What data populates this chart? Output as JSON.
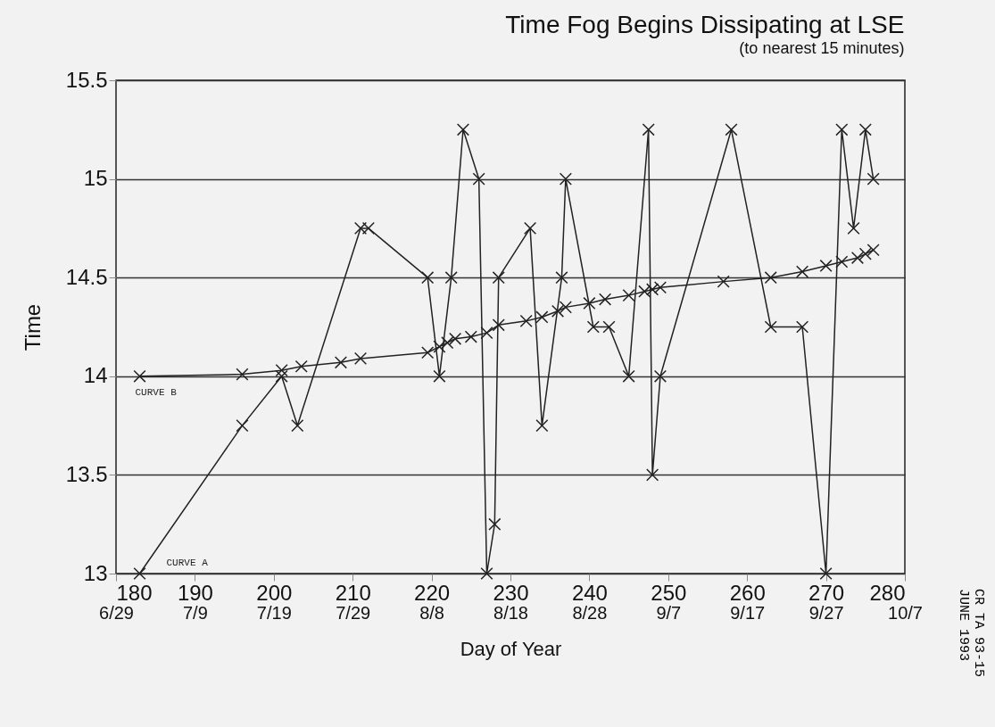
{
  "chart_data": {
    "type": "line",
    "title": "Time Fog Begins Dissipating at LSE",
    "subtitle": "(to nearest 15 minutes)",
    "xlabel": "Day of Year",
    "ylabel": "Time",
    "xlim": [
      180,
      280
    ],
    "ylim": [
      13,
      15.5
    ],
    "xticks": [
      180,
      190,
      200,
      210,
      220,
      230,
      240,
      250,
      260,
      270,
      280
    ],
    "x2lim": [
      "--06-29",
      "--10-07"
    ],
    "x2ticks": [
      {
        "value": "--06-29",
        "label": "6/29"
      },
      {
        "value": "--07-09",
        "label": "7/9"
      },
      {
        "value": "--07-19",
        "label": "7/19"
      },
      {
        "value": "--07-29",
        "label": "7/29"
      },
      {
        "value": "--08-08",
        "label": "8/8"
      },
      {
        "value": "--08-18",
        "label": "8/18"
      },
      {
        "value": "--08-28",
        "label": "8/28"
      },
      {
        "value": "--09-07",
        "label": "9/7"
      },
      {
        "value": "--09-17",
        "label": "9/17"
      },
      {
        "value": "--09-27",
        "label": "9/27"
      },
      {
        "value": "--10-07",
        "label": "10/7"
      }
    ],
    "yticks": [
      13,
      13.5,
      14,
      14.5,
      15,
      15.5
    ],
    "grid": "y",
    "marker": "cross",
    "series": [
      {
        "name": "CURVE A",
        "color": "#222222",
        "x": [
          183,
          196,
          201,
          203,
          211,
          212,
          219.5,
          221,
          222.5,
          224,
          226,
          227,
          228,
          228.5,
          232.5,
          234,
          236.5,
          237,
          240.5,
          242.5,
          245,
          247.5,
          248,
          249,
          258,
          263,
          267,
          270,
          272,
          273.5,
          275,
          276
        ],
        "values": [
          13,
          13.75,
          14,
          13.75,
          14.75,
          14.75,
          14.5,
          14,
          14.5,
          15.25,
          15,
          13,
          13.25,
          14.5,
          14.75,
          13.75,
          14.5,
          15,
          14.25,
          14.25,
          14,
          15.25,
          13.5,
          14,
          15.25,
          14.25,
          14.25,
          13,
          15.25,
          14.75,
          15.25,
          15
        ]
      },
      {
        "name": "CURVE B",
        "color": "#222222",
        "x": [
          183,
          196,
          201,
          203.5,
          208.5,
          211,
          219.5,
          221,
          222,
          223,
          225,
          227,
          228.5,
          232,
          234,
          236,
          237,
          240,
          242,
          245,
          247,
          248,
          249,
          257,
          263,
          267,
          270,
          272,
          274,
          275,
          276
        ],
        "values": [
          14,
          14.01,
          14.03,
          14.05,
          14.07,
          14.09,
          14.12,
          14.15,
          14.17,
          14.19,
          14.2,
          14.22,
          14.26,
          14.28,
          14.3,
          14.33,
          14.35,
          14.37,
          14.39,
          14.41,
          14.43,
          14.44,
          14.45,
          14.48,
          14.5,
          14.53,
          14.56,
          14.58,
          14.6,
          14.62,
          14.64
        ]
      }
    ],
    "annotations": [
      "CR TA 93-15",
      "JUNE 1993"
    ]
  }
}
